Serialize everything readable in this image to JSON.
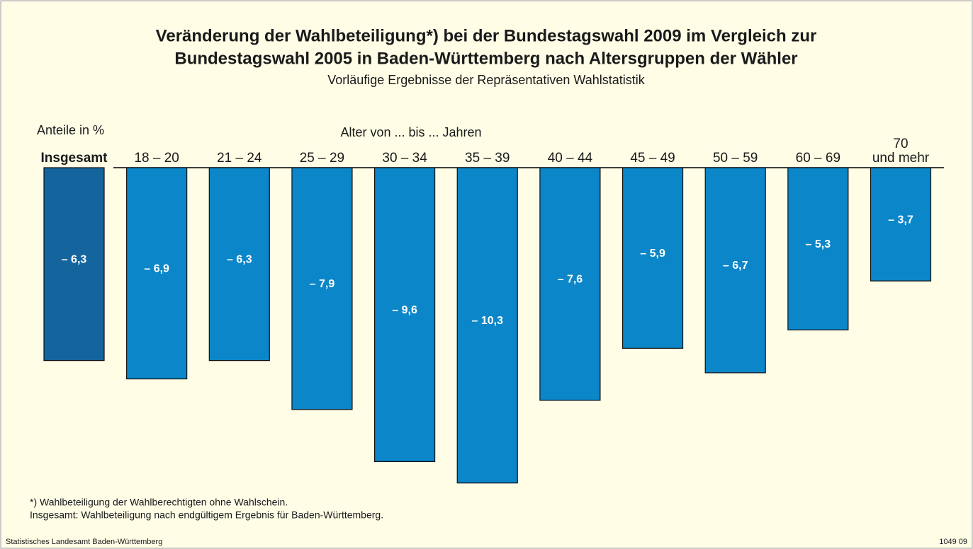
{
  "chart_data": {
    "type": "bar",
    "title": [
      "Veränderung der Wahlbeteiligung*) bei der Bundestagswahl 2009 im Vergleich zur",
      "Bundestagswahl 2005 in Baden-Württemberg nach Altersgruppen der Wähler"
    ],
    "subtitle": "Vorläufige Ergebnisse der Repräsentativen Wahlstatistik",
    "y_label": "Anteile in %",
    "x_label": "Alter von ... bis ... Jahren",
    "categories": [
      "Insgesamt",
      "18 – 20",
      "21 – 24",
      "25 – 29",
      "30 – 34",
      "35 – 39",
      "40 – 44",
      "45 – 49",
      "50 – 59",
      "60 – 69",
      "70\nund mehr"
    ],
    "values": [
      -6.3,
      -6.9,
      -6.3,
      -7.9,
      -9.6,
      -10.3,
      -7.6,
      -5.9,
      -6.7,
      -5.3,
      -3.7
    ],
    "value_labels": [
      "– 6,3",
      "– 6,9",
      "– 6,3",
      "– 7,9",
      "– 9,6",
      "– 10,3",
      "– 7,6",
      "– 5,9",
      "– 6,7",
      "– 5,3",
      "– 3,7"
    ],
    "colors": [
      "#14649d",
      "#0b86c9",
      "#0b86c9",
      "#0b86c9",
      "#0b86c9",
      "#0b86c9",
      "#0b86c9",
      "#0b86c9",
      "#0b86c9",
      "#0b86c9",
      "#0b86c9"
    ],
    "ylim": [
      -11,
      0
    ],
    "footnotes": [
      "*) Wahlbeteiligung der Wahlberechtigten ohne Wahlschein.",
      "Insgesamt: Wahlbeteiligung nach endgültigem Ergebnis für Baden-Württemberg."
    ],
    "source": "Statistisches Landesamt Baden-Württemberg",
    "code": "1049 09"
  }
}
